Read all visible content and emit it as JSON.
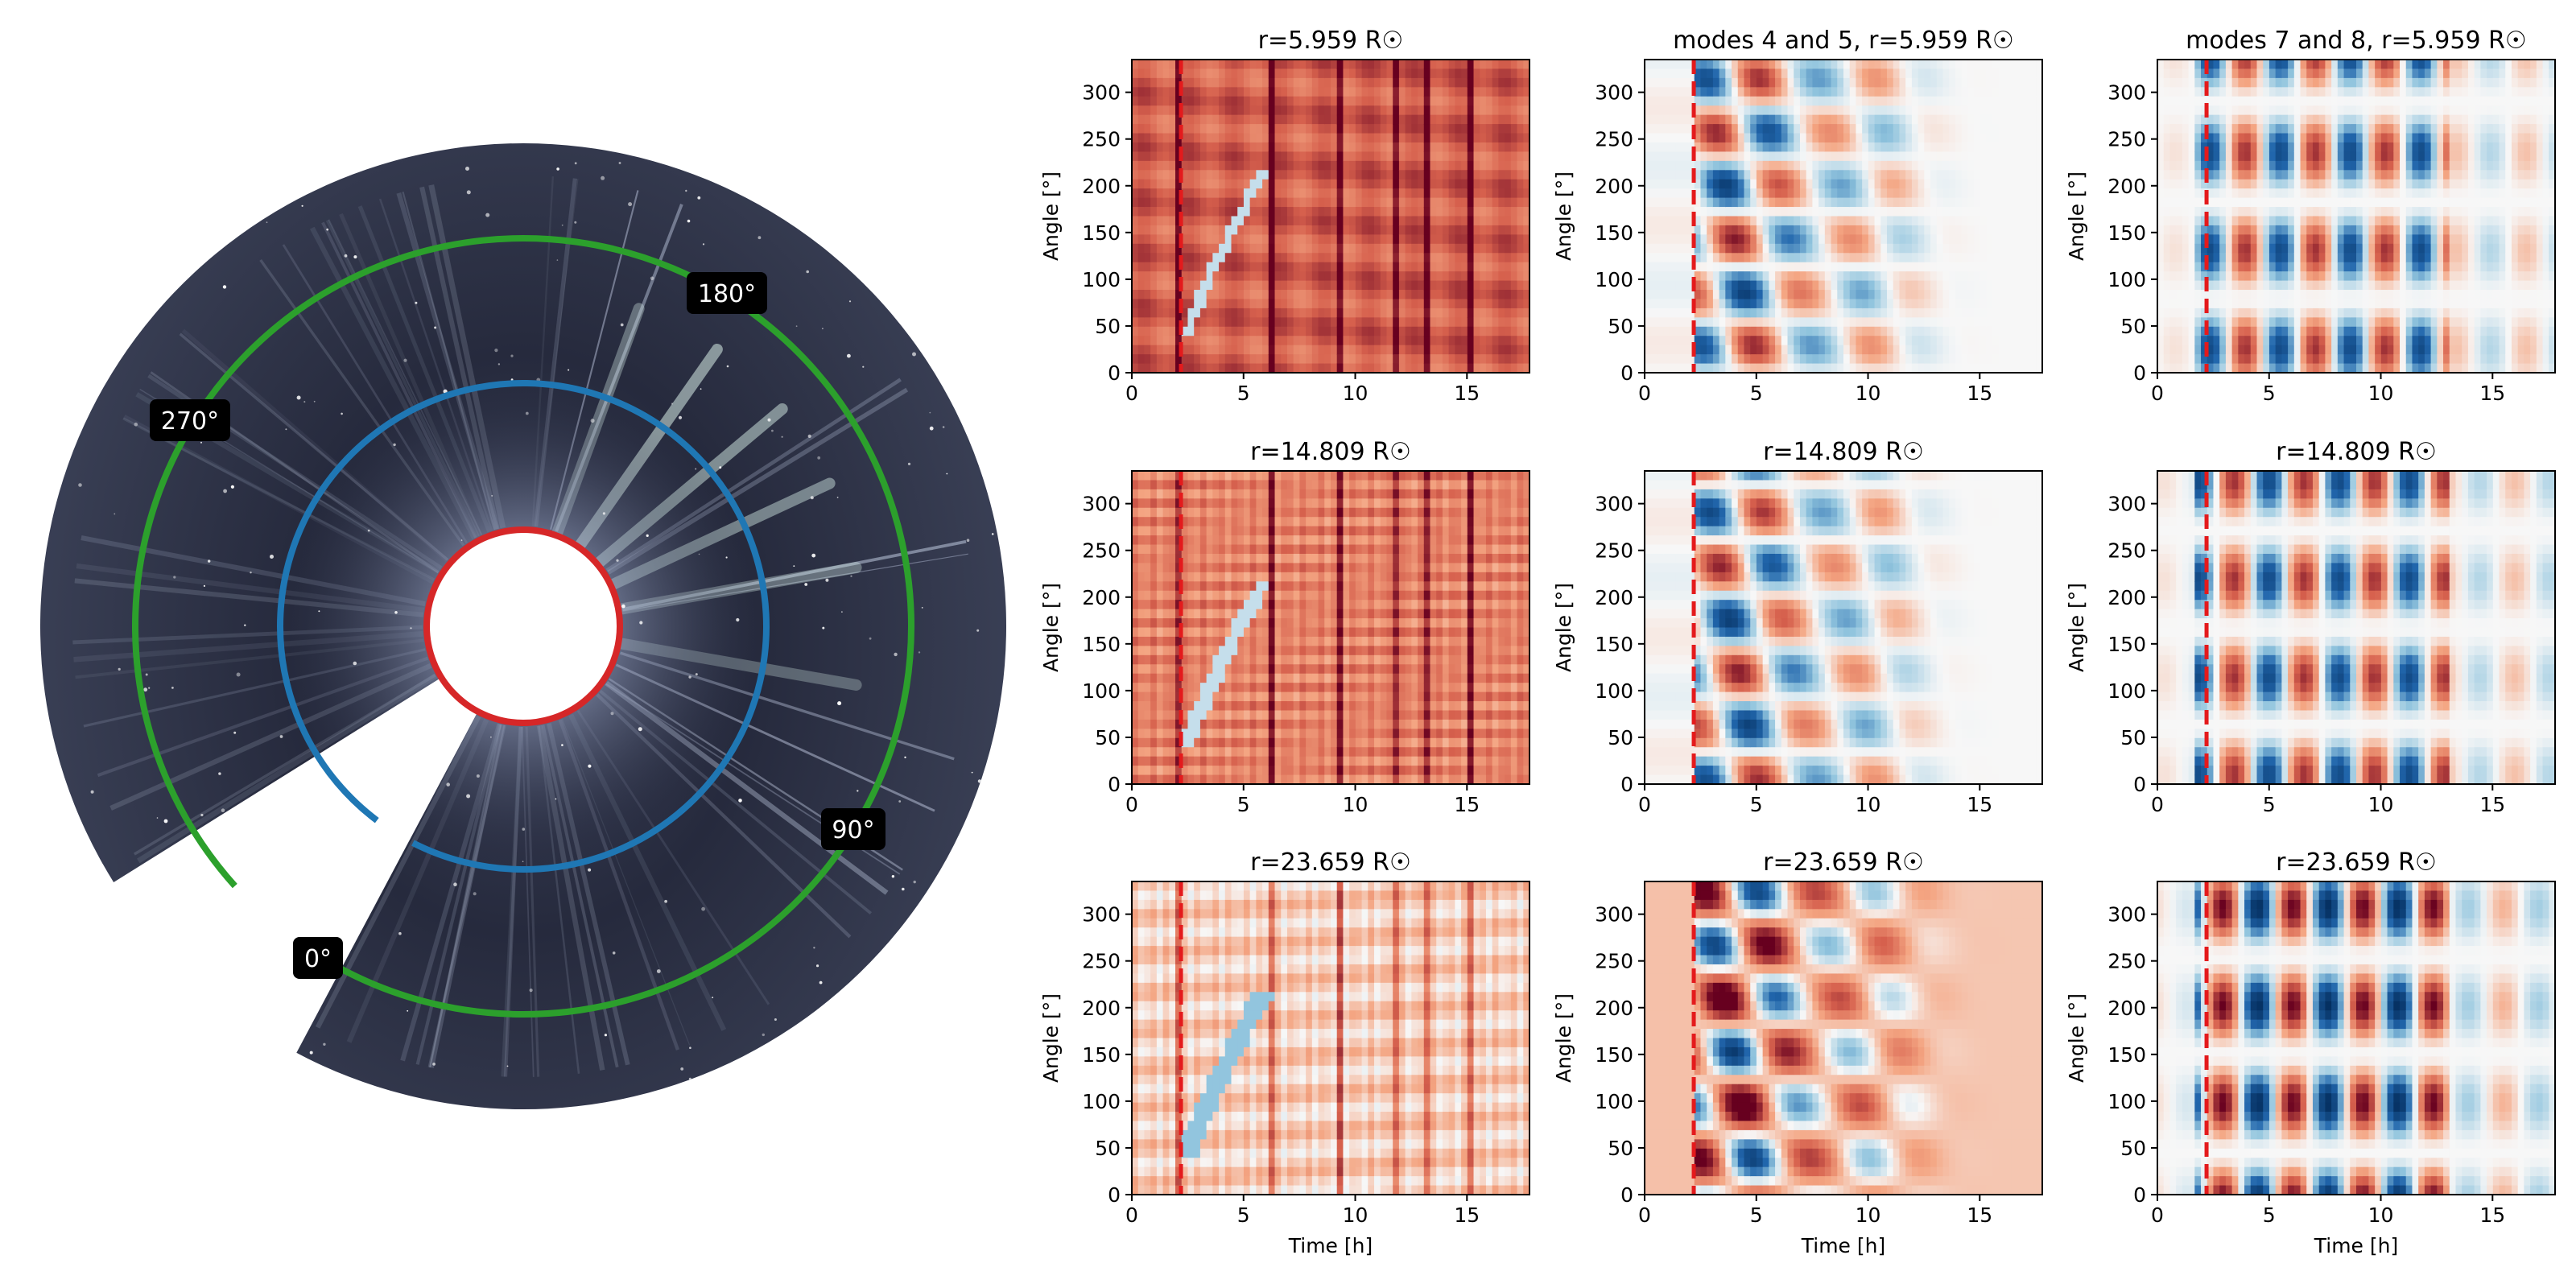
{
  "chart_data": {
    "type": "heatmap",
    "coronagraph": {
      "title": "",
      "angle_labels": [
        "180°",
        "270°",
        "90°",
        "0°"
      ],
      "circles": [
        {
          "name": "inner-occulter",
          "color": "#d62728"
        },
        {
          "name": "r-mid",
          "color": "#1f77b4"
        },
        {
          "name": "r-outer",
          "color": "#2ca02c"
        }
      ]
    },
    "panels": [
      {
        "title": "r=5.959 R☉",
        "kind": "raw",
        "row": 0,
        "col": 0
      },
      {
        "title": "modes 4 and 5, r=5.959 R☉",
        "kind": "modes45",
        "row": 0,
        "col": 1
      },
      {
        "title": "modes 7 and 8, r=5.959 R☉",
        "kind": "modes78",
        "row": 0,
        "col": 2
      },
      {
        "title": "r=14.809 R☉",
        "kind": "raw",
        "row": 1,
        "col": 0
      },
      {
        "title": "r=14.809 R☉",
        "kind": "modes45",
        "row": 1,
        "col": 1
      },
      {
        "title": "r=14.809 R☉",
        "kind": "modes78",
        "row": 1,
        "col": 2
      },
      {
        "title": "r=23.659 R☉",
        "kind": "raw",
        "row": 2,
        "col": 0
      },
      {
        "title": "r=23.659 R☉",
        "kind": "modes45",
        "row": 2,
        "col": 1
      },
      {
        "title": "r=23.659 R☉",
        "kind": "modes78",
        "row": 2,
        "col": 2
      }
    ],
    "xlabel": "Time [h]",
    "ylabel": "Angle [°]",
    "xlim": [
      0,
      17.8
    ],
    "ylim": [
      0,
      335
    ],
    "xticks": [
      0,
      5,
      10,
      15
    ],
    "yticks": [
      0,
      50,
      100,
      150,
      200,
      250,
      300
    ],
    "event_time_h": 2.2,
    "event_line_color": "#e41a1c",
    "colormap": "RdBu_r"
  }
}
